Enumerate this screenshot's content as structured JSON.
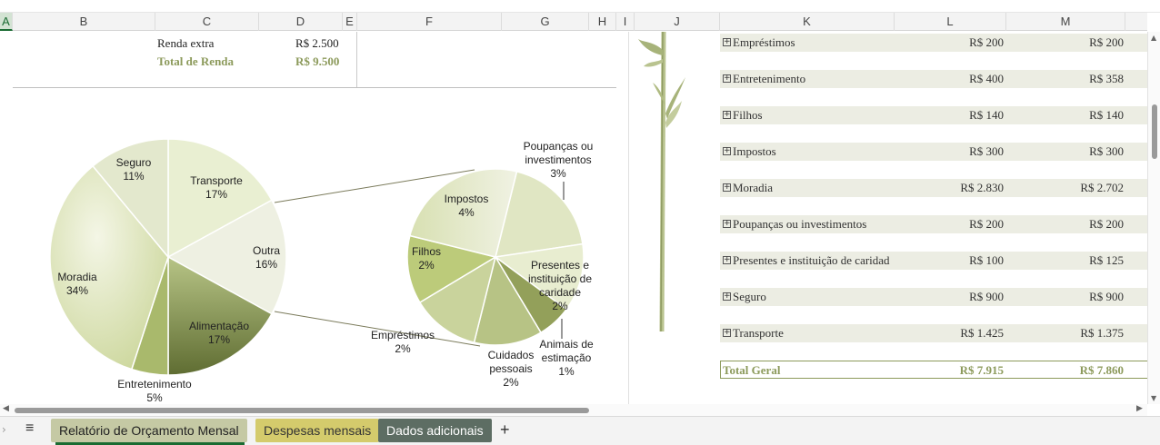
{
  "columns": [
    {
      "id": "A",
      "active": true
    },
    {
      "id": "B"
    },
    {
      "id": "C"
    },
    {
      "id": "D"
    },
    {
      "id": "E"
    },
    {
      "id": "F"
    },
    {
      "id": "G"
    },
    {
      "id": "H"
    },
    {
      "id": "I"
    },
    {
      "id": "J"
    },
    {
      "id": "K"
    },
    {
      "id": "L"
    },
    {
      "id": "M"
    }
  ],
  "income": {
    "extra_label": "Renda extra",
    "extra_value": "R$ 2.500",
    "total_label": "Total de Renda",
    "total_value": "R$ 9.500"
  },
  "categories": [
    {
      "name": "Empréstimos",
      "projected": "R$ 200",
      "actual": "R$ 200"
    },
    {
      "name": "Entretenimento",
      "projected": "R$ 400",
      "actual": "R$ 358"
    },
    {
      "name": "Filhos",
      "projected": "R$ 140",
      "actual": "R$ 140"
    },
    {
      "name": "Impostos",
      "projected": "R$ 300",
      "actual": "R$ 300"
    },
    {
      "name": "Moradia",
      "projected": "R$ 2.830",
      "actual": "R$ 2.702"
    },
    {
      "name": "Poupanças ou investimentos",
      "projected": "R$ 200",
      "actual": "R$ 200"
    },
    {
      "name": "Presentes e instituição de caridad",
      "projected": "R$ 100",
      "actual": "R$ 125"
    },
    {
      "name": "Seguro",
      "projected": "R$ 900",
      "actual": "R$ 900"
    },
    {
      "name": "Transporte",
      "projected": "R$ 1.425",
      "actual": "R$ 1.375"
    }
  ],
  "total": {
    "label": "Total Geral",
    "projected": "R$ 7.915",
    "actual": "R$ 7.860"
  },
  "chart_data": {
    "type": "pie",
    "main_slices": [
      {
        "label": "Transporte",
        "pct": 17
      },
      {
        "label": "Outra",
        "pct": 16
      },
      {
        "label": "Alimentação",
        "pct": 17
      },
      {
        "label": "Entretenimento",
        "pct": 5
      },
      {
        "label": "Moradia",
        "pct": 34
      },
      {
        "label": "Seguro",
        "pct": 11
      }
    ],
    "sub_slices": [
      {
        "label": "Poupanças ou investimentos",
        "pct": 3
      },
      {
        "label": "Presentes e instituição de caridade",
        "pct": 2
      },
      {
        "label": "Animais de estimação",
        "pct": 1
      },
      {
        "label": "Cuidados pessoais",
        "pct": 2
      },
      {
        "label": "Empréstimos",
        "pct": 2
      },
      {
        "label": "Filhos",
        "pct": 2
      },
      {
        "label": "Impostos",
        "pct": 4
      }
    ]
  },
  "tabs": [
    {
      "label": "Relatório de Orçamento Mensal",
      "active": true,
      "color": "#c5c9a4"
    },
    {
      "label": "Despesas mensais",
      "color": "#d4cb6c"
    },
    {
      "label": "Dados adicionais",
      "color": "#5d6d63"
    }
  ],
  "tabbar": {
    "add_label": "+",
    "menu_label": "≡"
  }
}
